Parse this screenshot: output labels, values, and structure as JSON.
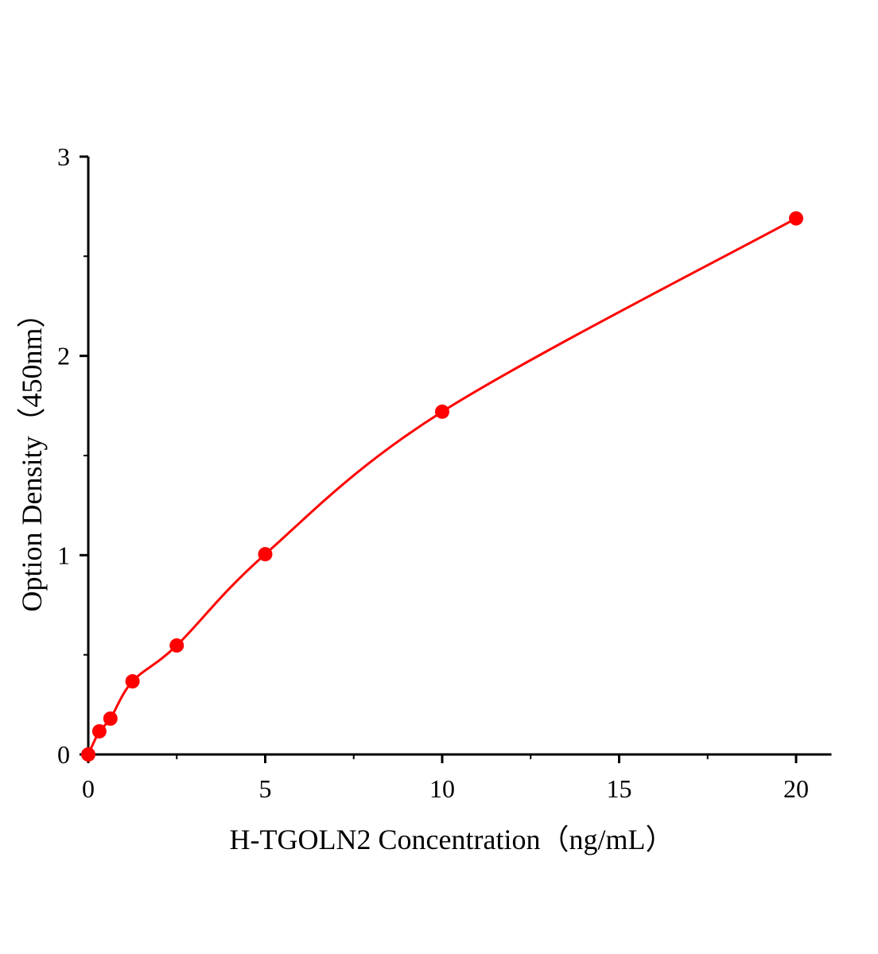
{
  "chart_data": {
    "type": "scatter",
    "title": "",
    "xlabel": "H-TGOLN2 Concentration（ng/mL）",
    "ylabel": "Option Density（450nm）",
    "xlim": [
      0,
      21
    ],
    "ylim": [
      0,
      3
    ],
    "x_ticks": [
      0,
      5,
      10,
      15,
      20
    ],
    "x_tick_labels": [
      "0",
      "5",
      "10",
      "15",
      "20"
    ],
    "y_ticks": [
      0,
      1,
      2,
      3
    ],
    "y_tick_labels": [
      "0",
      "1",
      "2",
      "3"
    ],
    "grid": false,
    "legend": "none",
    "colors": {
      "series": "#ff0000",
      "axis": "#000000"
    },
    "series": [
      {
        "x": [
          0,
          0.3125,
          0.625,
          1.25,
          2.5,
          5,
          10,
          20
        ],
        "y": [
          0.0,
          0.116,
          0.18,
          0.367,
          0.547,
          1.005,
          1.72,
          2.69
        ],
        "fit_curve": true
      }
    ]
  }
}
